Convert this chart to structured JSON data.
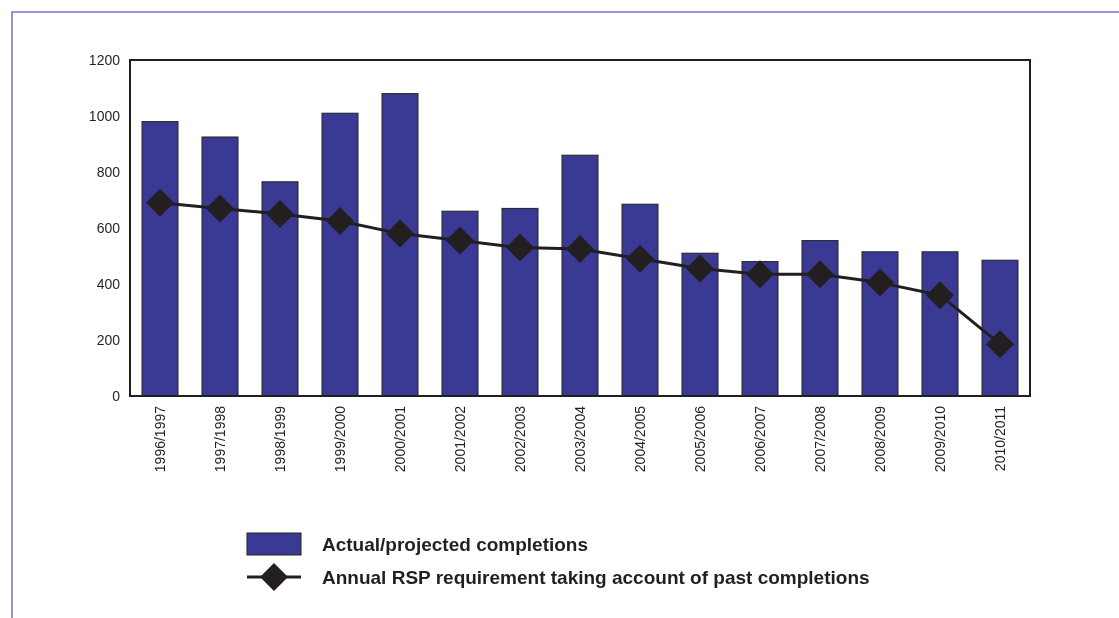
{
  "chart_data": {
    "type": "bar",
    "categories": [
      "1996/1997",
      "1997/1998",
      "1998/1999",
      "1999/2000",
      "2000/2001",
      "2001/2002",
      "2002/2003",
      "2003/2004",
      "2004/2005",
      "2005/2006",
      "2006/2007",
      "2007/2008",
      "2008/2009",
      "2009/2010",
      "2010/2011"
    ],
    "series": [
      {
        "name": "Actual/projected completions",
        "color": "#3a3a94",
        "values": [
          980,
          925,
          765,
          1010,
          1080,
          660,
          670,
          860,
          685,
          510,
          480,
          555,
          515,
          515,
          485
        ]
      },
      {
        "name": "Annual RSP requirement taking account of past completions",
        "type": "line",
        "color": "#231f20",
        "marker": "diamond",
        "values": [
          690,
          670,
          650,
          625,
          580,
          555,
          530,
          525,
          490,
          455,
          435,
          435,
          405,
          360,
          185
        ]
      }
    ],
    "ylim": [
      0,
      1200
    ],
    "yticks": [
      0,
      200,
      400,
      600,
      800,
      1000,
      1200
    ],
    "grid": false,
    "legend": "bottom"
  }
}
